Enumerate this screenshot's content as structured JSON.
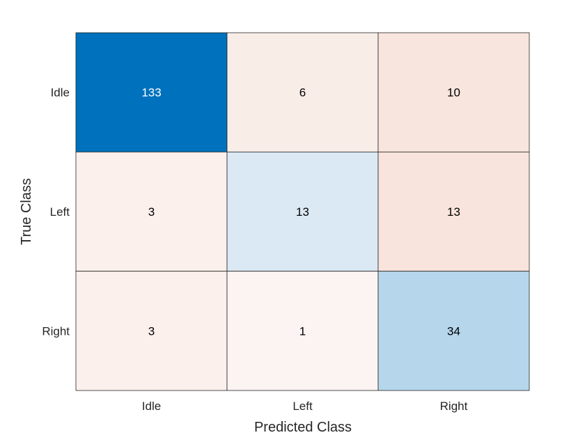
{
  "chart_data": {
    "type": "heatmap",
    "title": "",
    "xlabel": "Predicted Class",
    "ylabel": "True Class",
    "x_categories": [
      "Idle",
      "Left",
      "Right"
    ],
    "y_categories": [
      "Idle",
      "Left",
      "Right"
    ],
    "values": [
      [
        133,
        6,
        10
      ],
      [
        3,
        13,
        13
      ],
      [
        3,
        1,
        34
      ]
    ],
    "cell_colors": [
      [
        "#0072bd",
        "#f9ede8",
        "#f8e5dd"
      ],
      [
        "#fbf0ec",
        "#dbe9f4",
        "#f8e4dc"
      ],
      [
        "#fbf0ec",
        "#fcf4f2",
        "#b5d6eb"
      ]
    ],
    "cell_text_colors": [
      [
        "#ffffff",
        "#000000",
        "#000000"
      ],
      [
        "#000000",
        "#000000",
        "#000000"
      ],
      [
        "#000000",
        "#000000",
        "#000000"
      ]
    ],
    "grid": true
  }
}
